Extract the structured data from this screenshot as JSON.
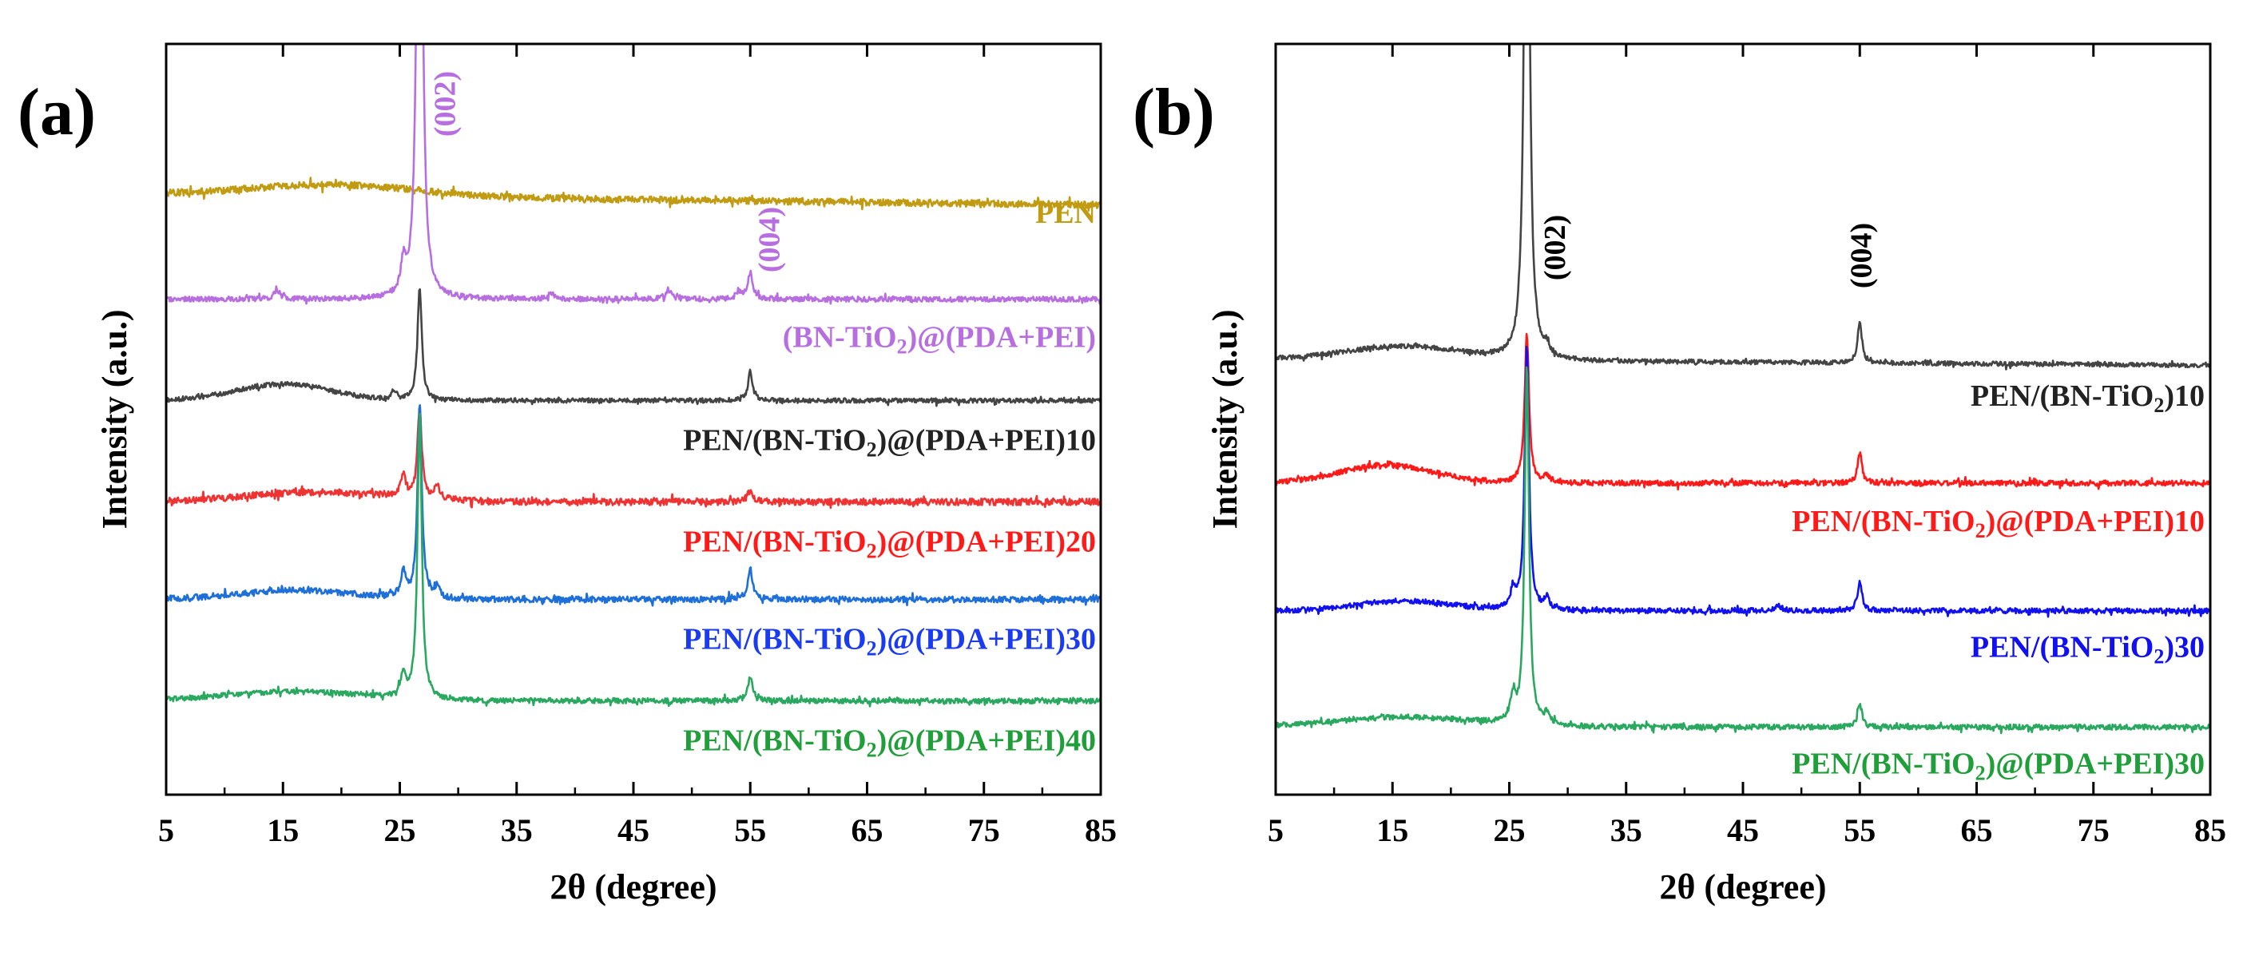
{
  "figure": {
    "type": "xrd-pattern-panels",
    "colors": {
      "gold": "#c19b12",
      "purple": "#b76fe0",
      "dark": "#444444",
      "red": "#ef3333",
      "blue": "#1f6fd8",
      "pure_red": "#ff1a1a",
      "pure_blue": "#1010f0",
      "green": "#2aa860"
    }
  },
  "chart_data": [
    {
      "panel_label": "(a)",
      "type": "line",
      "title": "",
      "xlabel": "2θ (degree)",
      "ylabel": "Intensity (a.u.)",
      "xlim": [
        5,
        85
      ],
      "xticks": [
        5,
        15,
        25,
        35,
        45,
        55,
        65,
        75,
        85
      ],
      "xtick_labels": [
        "5",
        "15",
        "25",
        "35",
        "45",
        "55",
        "65",
        "75",
        "85"
      ],
      "ylim": [
        0,
        100
      ],
      "y_ticks_shown": false,
      "peak_annotations": [
        {
          "text": "(002)",
          "x": 26.7,
          "color": "#b76fe0"
        },
        {
          "text": "(004)",
          "x": 55.0,
          "color": "#b76fe0"
        }
      ],
      "series": [
        {
          "name": "PEN",
          "color": "#c19b12",
          "offset": 80,
          "hump": {
            "center": 19.5,
            "width": 7.0,
            "height": 1.5
          },
          "peaks": [],
          "noise": 0.45,
          "baseline_slope": -0.018
        },
        {
          "name": "(BN-TiO2)@(PDA+PEI)",
          "color": "#b76fe0",
          "offset": 66,
          "hump": {
            "center": 16,
            "width": 6,
            "height": 0.0
          },
          "peaks": [
            {
              "x": 26.7,
              "h": 110,
              "w": 0.22
            },
            {
              "x": 25.3,
              "h": 4,
              "w": 0.25
            },
            {
              "x": 14.5,
              "h": 1.2,
              "w": 0.3
            },
            {
              "x": 48.0,
              "h": 1.3,
              "w": 0.3
            },
            {
              "x": 38.0,
              "h": 0.8,
              "w": 0.3
            },
            {
              "x": 55.0,
              "h": 3.5,
              "w": 0.25
            },
            {
              "x": 54.0,
              "h": 1.0,
              "w": 0.25
            }
          ],
          "noise": 0.35,
          "baseline_slope": 0
        },
        {
          "name": "PEN/(BN-TiO2)@(PDA+PEI)10",
          "color": "#444444",
          "offset": 52.5,
          "hump": {
            "center": 15,
            "width": 4,
            "height": 2.2
          },
          "peaks": [
            {
              "x": 26.7,
              "h": 15,
              "w": 0.22
            },
            {
              "x": 55.0,
              "h": 4.0,
              "w": 0.22
            },
            {
              "x": 24.5,
              "h": 1.2,
              "w": 0.25
            }
          ],
          "noise": 0.3,
          "baseline_slope": 0
        },
        {
          "name": "PEN/(BN-TiO2)@(PDA+PEI)20",
          "color": "#ef3333",
          "offset": 39,
          "hump": {
            "center": 18,
            "width": 6,
            "height": 1.3
          },
          "peaks": [
            {
              "x": 26.7,
              "h": 12,
              "w": 0.22
            },
            {
              "x": 25.3,
              "h": 3,
              "w": 0.25
            },
            {
              "x": 28.2,
              "h": 2.0,
              "w": 0.25
            },
            {
              "x": 55.0,
              "h": 1.5,
              "w": 0.25
            }
          ],
          "noise": 0.45,
          "baseline_slope": 0
        },
        {
          "name": "PEN/(BN-TiO2)@(PDA+PEI)30",
          "color": "#1f6fd8",
          "offset": 26,
          "hump": {
            "center": 16,
            "width": 5,
            "height": 1.2
          },
          "peaks": [
            {
              "x": 26.7,
              "h": 26,
              "w": 0.22
            },
            {
              "x": 25.3,
              "h": 3.5,
              "w": 0.25
            },
            {
              "x": 28.2,
              "h": 1.5,
              "w": 0.25
            },
            {
              "x": 55.0,
              "h": 4.0,
              "w": 0.25
            }
          ],
          "noise": 0.4,
          "baseline_slope": 0
        },
        {
          "name": "PEN/(BN-TiO2)@(PDA+PEI)40",
          "color": "#2aa860",
          "offset": 12.5,
          "hump": {
            "center": 16,
            "width": 6,
            "height": 1.2
          },
          "peaks": [
            {
              "x": 26.7,
              "h": 38,
              "w": 0.22
            },
            {
              "x": 25.3,
              "h": 3.0,
              "w": 0.25
            },
            {
              "x": 55.0,
              "h": 3.2,
              "w": 0.25
            }
          ],
          "noise": 0.35,
          "baseline_slope": 0
        }
      ],
      "legend_labels": [
        {
          "series": "PEN",
          "parts": [
            "PEN"
          ],
          "color": "#c19b12"
        },
        {
          "series": "(BN-TiO2)@(PDA+PEI)",
          "parts": [
            "(BN-TiO",
            "2",
            ")@(PDA+PEI)"
          ],
          "color": "#b76fe0"
        },
        {
          "series": "PEN/(BN-TiO2)@(PDA+PEI)10",
          "parts": [
            "PEN/(BN-TiO",
            "2",
            ")@(PDA+PEI)10"
          ],
          "color": "#222222"
        },
        {
          "series": "PEN/(BN-TiO2)@(PDA+PEI)20",
          "parts": [
            "PEN/(BN-TiO",
            "2",
            ")@(PDA+PEI)20"
          ],
          "color": "#ff1a1a"
        },
        {
          "series": "PEN/(BN-TiO2)@(PDA+PEI)30",
          "parts": [
            "PEN/(BN-TiO",
            "2",
            ")@(PDA+PEI)30"
          ],
          "color": "#1a3bf0"
        },
        {
          "series": "PEN/(BN-TiO2)@(PDA+PEI)40",
          "parts": [
            "PEN/(BN-TiO",
            "2",
            ")@(PDA+PEI)40"
          ],
          "color": "#1f9e3a"
        }
      ]
    },
    {
      "panel_label": "(b)",
      "type": "line",
      "title": "",
      "xlabel": "2θ (degree)",
      "ylabel": "Intensity (a.u.)",
      "xlim": [
        5,
        85
      ],
      "xticks": [
        5,
        15,
        25,
        35,
        45,
        55,
        65,
        75,
        85
      ],
      "xtick_labels": [
        "5",
        "15",
        "25",
        "35",
        "45",
        "55",
        "65",
        "75",
        "85"
      ],
      "ylim": [
        0,
        100
      ],
      "y_ticks_shown": false,
      "peak_annotations": [
        {
          "text": "(002)",
          "x": 28.8,
          "color": "#000000"
        },
        {
          "text": "(004)",
          "x": 55.0,
          "color": "#000000"
        }
      ],
      "series": [
        {
          "name": "PEN/(BN-TiO2)10",
          "color": "#444444",
          "offset": 58,
          "hump": {
            "center": 16,
            "width": 5,
            "height": 1.8
          },
          "peaks": [
            {
              "x": 26.5,
              "h": 110,
              "w": 0.22
            },
            {
              "x": 55.0,
              "h": 5.5,
              "w": 0.22
            },
            {
              "x": 28.2,
              "h": 1.3,
              "w": 0.25
            }
          ],
          "noise": 0.3,
          "baseline_slope": -0.01
        },
        {
          "name": "PEN/(BN-TiO2)@(PDA+PEI)10",
          "color": "#ff1a1a",
          "offset": 41.5,
          "hump": {
            "center": 14.5,
            "width": 4,
            "height": 2.4
          },
          "peaks": [
            {
              "x": 26.5,
              "h": 20,
              "w": 0.22
            },
            {
              "x": 55.0,
              "h": 4.0,
              "w": 0.22
            },
            {
              "x": 28.2,
              "h": 1.0,
              "w": 0.25
            }
          ],
          "noise": 0.35,
          "baseline_slope": 0
        },
        {
          "name": "PEN/(BN-TiO2)30",
          "color": "#1010f0",
          "offset": 24.5,
          "hump": {
            "center": 16,
            "width": 4,
            "height": 1.3
          },
          "peaks": [
            {
              "x": 26.5,
              "h": 35,
              "w": 0.22
            },
            {
              "x": 25.3,
              "h": 2.5,
              "w": 0.25
            },
            {
              "x": 28.2,
              "h": 1.5,
              "w": 0.25
            },
            {
              "x": 55.0,
              "h": 4.0,
              "w": 0.22
            },
            {
              "x": 48.0,
              "h": 0.8,
              "w": 0.3
            }
          ],
          "noise": 0.35,
          "baseline_slope": 0
        },
        {
          "name": "PEN/(BN-TiO2)@(PDA+PEI)30",
          "color": "#2aa860",
          "offset": 9,
          "hump": {
            "center": 16,
            "width": 6,
            "height": 1.3
          },
          "peaks": [
            {
              "x": 26.5,
              "h": 48,
              "w": 0.22
            },
            {
              "x": 25.3,
              "h": 3.5,
              "w": 0.25
            },
            {
              "x": 28.2,
              "h": 1.3,
              "w": 0.25
            },
            {
              "x": 55.0,
              "h": 3.2,
              "w": 0.22
            }
          ],
          "noise": 0.35,
          "baseline_slope": 0
        }
      ],
      "legend_labels": [
        {
          "series": "PEN/(BN-TiO2)10",
          "parts": [
            "PEN/(BN-TiO",
            "2",
            ")10"
          ],
          "color": "#222222"
        },
        {
          "series": "PEN/(BN-TiO2)@(PDA+PEI)10",
          "parts": [
            "PEN/(BN-TiO",
            "2",
            ")@(PDA+PEI)10"
          ],
          "color": "#ff1a1a"
        },
        {
          "series": "PEN/(BN-TiO2)30",
          "parts": [
            "PEN/(BN-TiO",
            "2",
            ")30"
          ],
          "color": "#1010f0"
        },
        {
          "series": "PEN/(BN-TiO2)@(PDA+PEI)30",
          "parts": [
            "PEN/(BN-TiO",
            "2",
            ")@(PDA+PEI)30"
          ],
          "color": "#1f9e3a"
        }
      ]
    }
  ]
}
